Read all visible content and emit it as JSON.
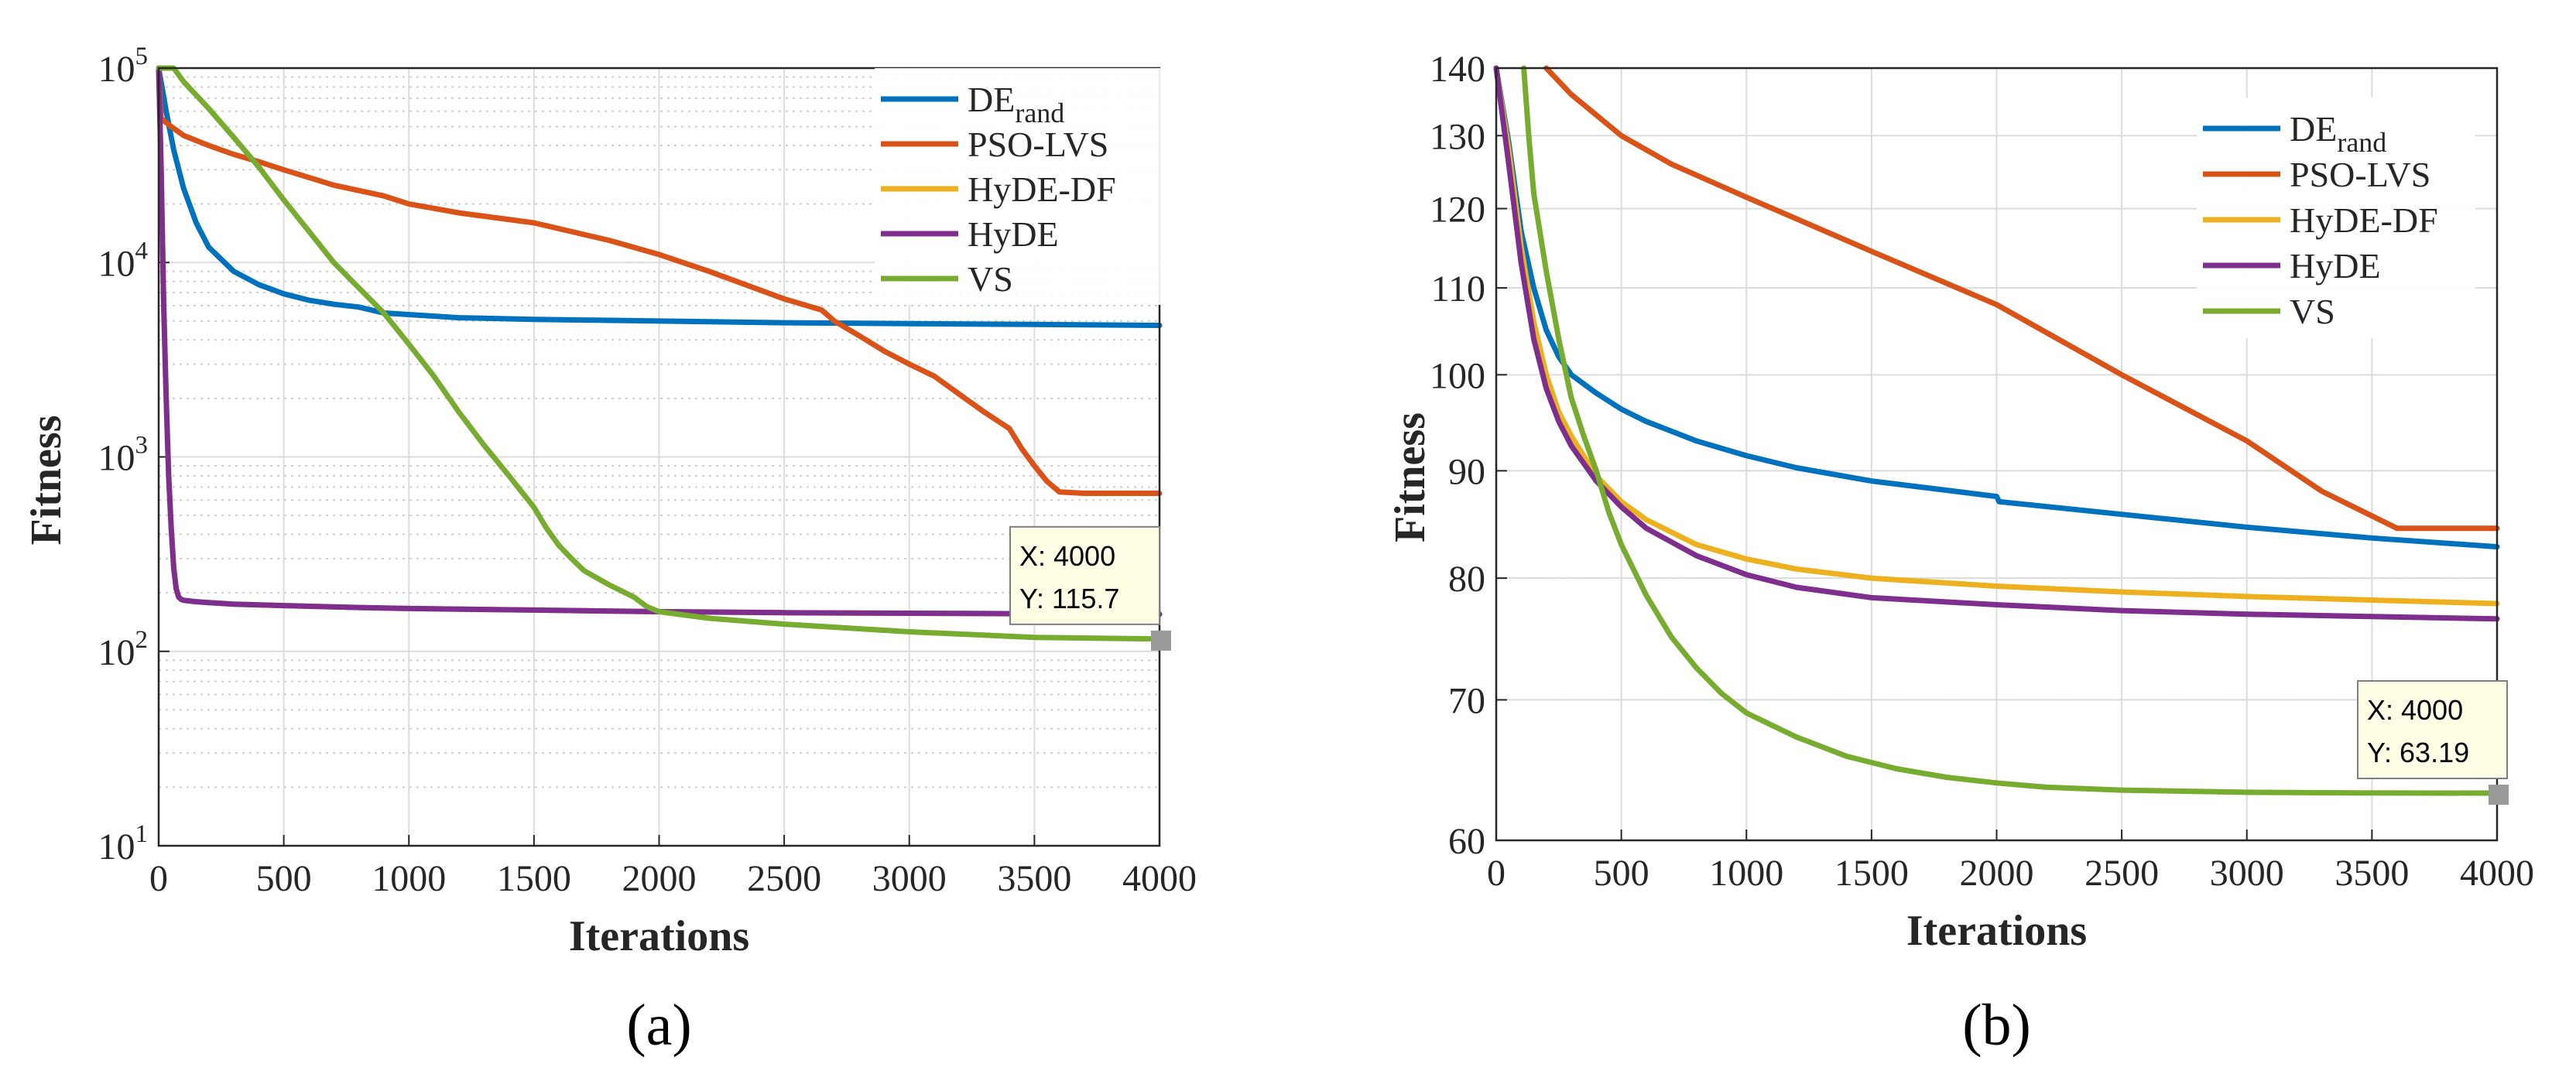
{
  "chart_data": [
    {
      "panel_label": "(a)",
      "type": "line",
      "xlabel": "Iterations",
      "ylabel": "Fitness",
      "x_scale": "linear",
      "y_scale": "log",
      "xlim": [
        0,
        4000
      ],
      "ylim": [
        10,
        100000
      ],
      "xticks": [
        0,
        500,
        1000,
        1500,
        2000,
        2500,
        3000,
        3500,
        4000
      ],
      "yticks": [
        {
          "value": 10,
          "base": "10",
          "exp": "1"
        },
        {
          "value": 100,
          "base": "10",
          "exp": "2"
        },
        {
          "value": 1000,
          "base": "10",
          "exp": "3"
        },
        {
          "value": 10000,
          "base": "10",
          "exp": "4"
        },
        {
          "value": 100000,
          "base": "10",
          "exp": "5"
        }
      ],
      "grid": true,
      "legend_position": "top-right",
      "series": [
        {
          "name": "DE",
          "sub": "rand",
          "color": "#0072BD",
          "x": [
            0,
            30,
            60,
            100,
            150,
            200,
            300,
            400,
            500,
            600,
            700,
            800,
            900,
            1000,
            1200,
            1500,
            2000,
            2500,
            3000,
            3500,
            4000
          ],
          "y": [
            100000,
            60000,
            38000,
            24000,
            16000,
            12000,
            9000,
            7700,
            6900,
            6400,
            6100,
            5900,
            5500,
            5400,
            5200,
            5100,
            5000,
            4900,
            4850,
            4800,
            4750
          ]
        },
        {
          "name": "PSO-LVS",
          "color": "#D95319",
          "x": [
            0,
            10,
            50,
            100,
            200,
            300,
            400,
            500,
            700,
            900,
            1000,
            1200,
            1500,
            1800,
            2000,
            2200,
            2500,
            2650,
            2700,
            2800,
            2900,
            3000,
            3100,
            3200,
            3300,
            3400,
            3450,
            3500,
            3550,
            3600,
            3700,
            3800,
            4000
          ],
          "y": [
            100000,
            55000,
            50000,
            45000,
            40000,
            36000,
            33000,
            30000,
            25000,
            22000,
            20000,
            18000,
            16000,
            13000,
            11000,
            9000,
            6500,
            5700,
            5000,
            4200,
            3500,
            3000,
            2600,
            2100,
            1700,
            1400,
            1100,
            900,
            750,
            660,
            650,
            650,
            650
          ]
        },
        {
          "name": "HyDE-DF",
          "color": "#EDB120",
          "x": [
            0,
            10,
            20,
            30,
            40,
            50,
            60,
            70,
            80,
            90,
            100,
            150,
            200,
            300,
            500,
            800,
            1000,
            1500,
            2000,
            2500,
            3000,
            3500,
            4000
          ],
          "y": [
            100000,
            30000,
            6000,
            2000,
            800,
            430,
            270,
            210,
            190,
            185,
            183,
            180,
            178,
            175,
            172,
            168,
            166,
            163,
            160,
            158,
            157,
            156,
            155
          ]
        },
        {
          "name": "HyDE",
          "color": "#7E2F8E",
          "x": [
            0,
            10,
            20,
            30,
            40,
            50,
            60,
            70,
            80,
            90,
            100,
            150,
            200,
            300,
            500,
            800,
            1000,
            1500,
            2000,
            2500,
            3000,
            3500,
            4000
          ],
          "y": [
            100000,
            30000,
            6000,
            2000,
            800,
            430,
            270,
            210,
            190,
            185,
            183,
            180,
            178,
            175,
            172,
            168,
            166,
            163,
            160,
            158,
            157,
            156,
            155
          ]
        },
        {
          "name": "VS",
          "color": "#77AC30",
          "x": [
            0,
            60,
            100,
            200,
            300,
            400,
            500,
            600,
            700,
            800,
            900,
            1000,
            1100,
            1200,
            1300,
            1400,
            1500,
            1550,
            1600,
            1650,
            1700,
            1800,
            1900,
            1950,
            2000,
            2200,
            2500,
            3000,
            3500,
            4000
          ],
          "y": [
            100000,
            100000,
            85000,
            62000,
            44000,
            31000,
            21000,
            14500,
            10000,
            7400,
            5500,
            3800,
            2600,
            1700,
            1150,
            800,
            550,
            430,
            350,
            300,
            260,
            220,
            190,
            170,
            160,
            148,
            138,
            126,
            118,
            115.7
          ]
        }
      ],
      "datatip": {
        "x_text": "X: 4000",
        "y_text": "Y: 115.7",
        "x": 4000,
        "y": 115.7
      }
    },
    {
      "panel_label": "(b)",
      "type": "line",
      "xlabel": "Iterations",
      "ylabel": "Fitness",
      "x_scale": "linear",
      "y_scale": "log",
      "xlim": [
        0,
        4000
      ],
      "ylim": [
        60,
        140
      ],
      "xticks": [
        0,
        500,
        1000,
        1500,
        2000,
        2500,
        3000,
        3500,
        4000
      ],
      "yticks": [
        60,
        70,
        80,
        90,
        100,
        110,
        120,
        130,
        140
      ],
      "grid": true,
      "legend_position": "top-right",
      "series": [
        {
          "name": "DE",
          "sub": "rand",
          "color": "#0072BD",
          "x": [
            0,
            50,
            100,
            150,
            200,
            250,
            300,
            400,
            500,
            600,
            800,
            1000,
            1200,
            1500,
            2000,
            2010,
            2500,
            3000,
            3500,
            4000
          ],
          "y": [
            140,
            129,
            117,
            110,
            105,
            102,
            100,
            98,
            96.3,
            95,
            93,
            91.5,
            90.3,
            89,
            87.5,
            87,
            85.8,
            84.6,
            83.6,
            82.8
          ]
        },
        {
          "name": "PSO-LVS",
          "color": "#D95319",
          "x": [
            200,
            300,
            500,
            700,
            1000,
            1500,
            2000,
            2500,
            3000,
            3300,
            3600,
            3700,
            4000
          ],
          "y": [
            140,
            136,
            130,
            126,
            121.5,
            114.5,
            108,
            100,
            93,
            88,
            84.5,
            84.5,
            84.5
          ]
        },
        {
          "name": "HyDE-DF",
          "color": "#EDB120",
          "x": [
            0,
            50,
            100,
            150,
            200,
            250,
            300,
            400,
            500,
            600,
            800,
            1000,
            1200,
            1500,
            2000,
            2500,
            3000,
            3500,
            4000
          ],
          "y": [
            140,
            128,
            115,
            106,
            100,
            96,
            93.5,
            89.5,
            87,
            85.3,
            83,
            81.7,
            80.8,
            80,
            79.3,
            78.8,
            78.4,
            78.1,
            77.8
          ]
        },
        {
          "name": "HyDE",
          "color": "#7E2F8E",
          "x": [
            0,
            50,
            100,
            150,
            200,
            250,
            300,
            400,
            500,
            600,
            800,
            1000,
            1200,
            1500,
            2000,
            2500,
            3000,
            3500,
            4000
          ],
          "y": [
            140,
            126,
            113,
            104,
            98.5,
            95,
            92.5,
            89,
            86.5,
            84.5,
            82,
            80.3,
            79.2,
            78.3,
            77.7,
            77.2,
            76.9,
            76.7,
            76.5
          ]
        },
        {
          "name": "VS",
          "color": "#77AC30",
          "x": [
            110,
            130,
            150,
            200,
            250,
            300,
            350,
            400,
            450,
            500,
            600,
            700,
            800,
            900,
            1000,
            1200,
            1400,
            1600,
            1800,
            2000,
            2200,
            2500,
            3000,
            3500,
            4000
          ],
          "y": [
            140,
            130,
            122,
            112,
            104,
            97.5,
            93.5,
            90,
            86,
            83,
            78.5,
            75,
            72.5,
            70.5,
            69,
            67.2,
            65.8,
            64.9,
            64.3,
            63.9,
            63.6,
            63.4,
            63.25,
            63.2,
            63.19
          ]
        }
      ],
      "datatip": {
        "x_text": "X: 4000",
        "y_text": "Y: 63.19",
        "x": 4000,
        "y": 63.19
      }
    }
  ]
}
